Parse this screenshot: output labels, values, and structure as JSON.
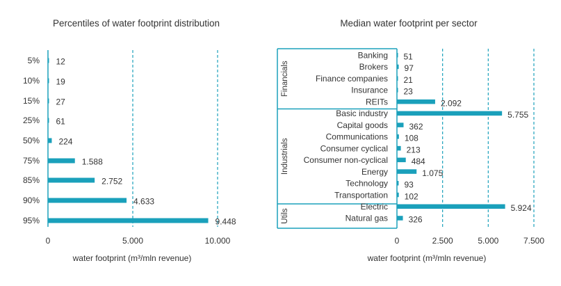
{
  "colors": {
    "bar": "#1aa0bb",
    "axis": "#1aa0bb",
    "grid": "#1aa0bb",
    "text": "#333333"
  },
  "chart_data": [
    {
      "type": "bar",
      "orientation": "horizontal",
      "title": "Percentiles of water footprint distribution",
      "xlabel": "water footprint (m³/mln revenue)",
      "ylabel": "",
      "xlim": [
        0,
        11000
      ],
      "xticks": [
        0,
        5000,
        10000
      ],
      "xtick_labels": [
        "0",
        "5.000",
        "10.000"
      ],
      "grid": "vertical dashed at 5.000 and 10.000",
      "categories": [
        "5%",
        "10%",
        "15%",
        "25%",
        "50%",
        "75%",
        "85%",
        "90%",
        "95%"
      ],
      "values": [
        12,
        19,
        27,
        61,
        224,
        1588,
        2752,
        4633,
        9448
      ],
      "value_labels": [
        "12",
        "19",
        "27",
        "61",
        "224",
        "1.588",
        "2.752",
        "4.633",
        "9.448"
      ]
    },
    {
      "type": "bar",
      "orientation": "horizontal",
      "title": "Median water footprint per sector",
      "xlabel": "water footprint (m³/mln revenue)",
      "ylabel": "",
      "xlim": [
        0,
        7500
      ],
      "xticks": [
        0,
        2500,
        5000,
        7500
      ],
      "xtick_labels": [
        "0",
        "2.500",
        "5.000",
        "7.500"
      ],
      "grid": "vertical dashed at 2.500, 5.000 and 7.500",
      "groups": [
        {
          "name": "Financials",
          "categories": [
            "Banking",
            "Brokers",
            "Finance companies",
            "Insurance",
            "REITs"
          ]
        },
        {
          "name": "Industrials",
          "categories": [
            "Basic industry",
            "Capital goods",
            "Communications",
            "Consumer cyclical",
            "Consumer non-cyclical",
            "Energy",
            "Technology",
            "Transportation"
          ]
        },
        {
          "name": "Utils",
          "categories": [
            "Electric",
            "Natural gas"
          ]
        }
      ],
      "categories": [
        "Banking",
        "Brokers",
        "Finance companies",
        "Insurance",
        "REITs",
        "Basic industry",
        "Capital goods",
        "Communications",
        "Consumer cyclical",
        "Consumer non-cyclical",
        "Energy",
        "Technology",
        "Transportation",
        "Electric",
        "Natural gas"
      ],
      "values": [
        51,
        97,
        21,
        23,
        2092,
        5755,
        362,
        108,
        213,
        484,
        1075,
        93,
        102,
        5924,
        326
      ],
      "value_labels": [
        "51",
        "97",
        "21",
        "23",
        "2.092",
        "5.755",
        "362",
        "108",
        "213",
        "484",
        "1.075",
        "93",
        "102",
        "5.924",
        "326"
      ]
    }
  ]
}
